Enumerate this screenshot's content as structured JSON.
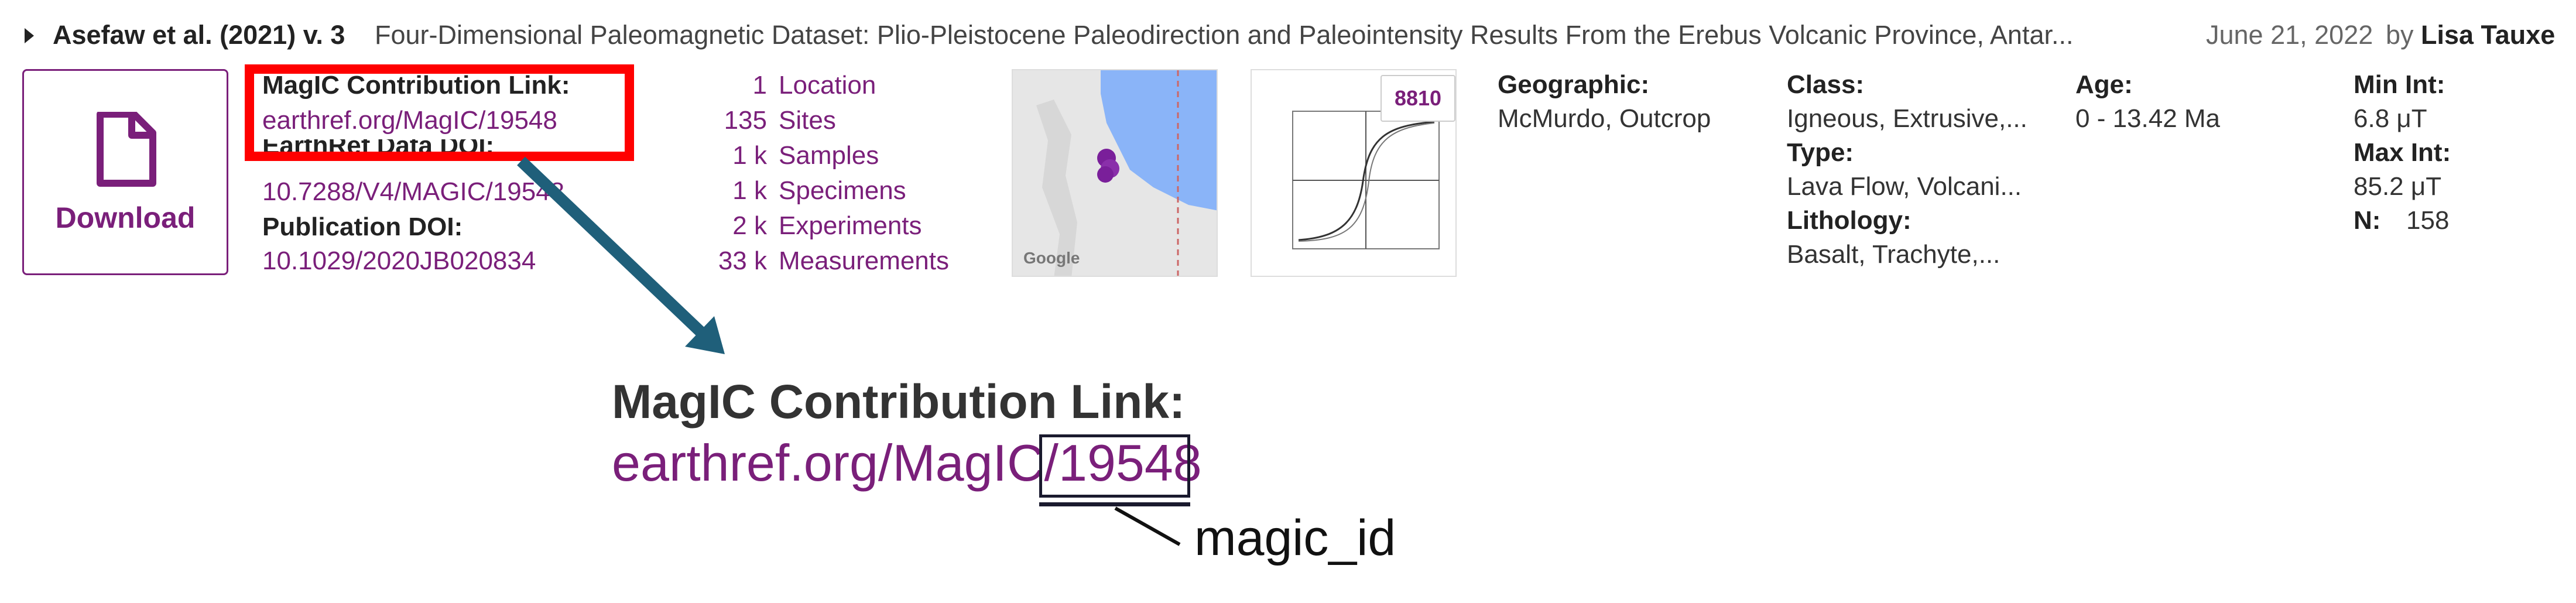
{
  "header": {
    "authors": "Asefaw et al. (2021) v. 3",
    "title": "Four-Dimensional Paleomagnetic Dataset: Plio-Pleistocene Paleodirection and Paleointensity Results From the Erebus Volcanic Province, Antar...",
    "date": "June 21, 2022",
    "by": "by",
    "contributor": "Lisa Tauxe"
  },
  "download": {
    "label": "Download",
    "icon": "document-icon"
  },
  "links": {
    "magic_label": "MagIC Contribution Link:",
    "magic_value": "earthref.org/MagIC/19548",
    "earthref_label": "EarthRef Data DOI:",
    "earthref_value": "10.7288/V4/MAGIC/19548",
    "pub_label": "Publication DOI:",
    "pub_value": "10.1029/2020JB020834"
  },
  "counts": [
    {
      "count": "1",
      "label": "Location"
    },
    {
      "count": "135",
      "label": "Sites"
    },
    {
      "count": "1 k",
      "label": "Samples"
    },
    {
      "count": "1 k",
      "label": "Specimens"
    },
    {
      "count": "2 k",
      "label": "Experiments"
    },
    {
      "count": "33 k",
      "label": "Measurements"
    }
  ],
  "thumbnails": {
    "map_attribution": "Google",
    "plot_badge": "8810"
  },
  "meta": {
    "geographic_label": "Geographic:",
    "geographic_value": "McMurdo, Outcrop",
    "class_label": "Class:",
    "class_value": "Igneous, Extrusive,...",
    "type_label": "Type:",
    "type_value": "Lava Flow, Volcani...",
    "lithology_label": "Lithology:",
    "lithology_value": "Basalt, Trachyte,...",
    "age_label": "Age:",
    "age_value": "0 - 13.42 Ma",
    "min_int_label": "Min Int:",
    "min_int_value": "6.8 μT",
    "max_int_label": "Max Int:",
    "max_int_value": "85.2 μT",
    "n_label": "N:",
    "n_value": "158"
  },
  "callout": {
    "label": "MagIC Contribution Link:",
    "link_prefix": "earthref.org/MagIC/",
    "link_id": "19548",
    "note": "magic_id"
  },
  "colors": {
    "link": "#7a1f7a",
    "highlight": "#ff0000",
    "arrow": "#1f5f7a",
    "map_water": "#8ab4f8"
  }
}
